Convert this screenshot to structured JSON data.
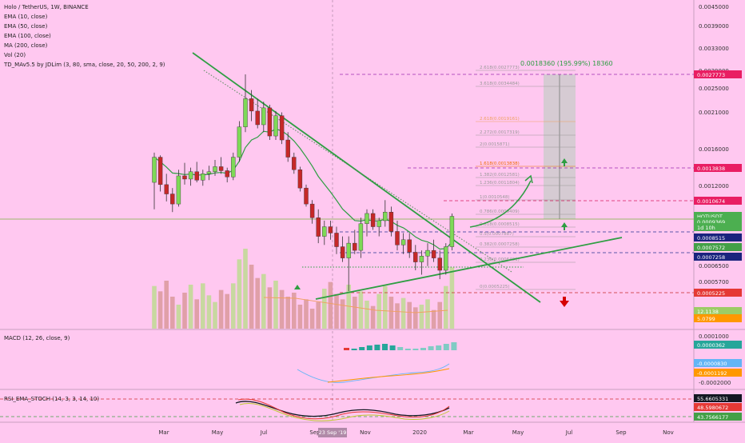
{
  "chart_data": {
    "type": "candlestick",
    "title": "Holo / TetherUS, 1W, BINANCE",
    "price_axis": {
      "ylim": [
        0.0004,
        0.0046
      ],
      "ticks": [
        "0.0045000",
        "0.0039000",
        "0.0033000",
        "0.0029000",
        "0.0025000",
        "0.0021000",
        "0.0016000",
        "0.0012000",
        "0.0006500",
        "0.0005700"
      ]
    },
    "time_axis": {
      "ticks": [
        "Mar",
        "May",
        "Jul",
        "Sep",
        "Nov",
        "2020",
        "Mar",
        "May",
        "Jul",
        "Sep",
        "Nov"
      ],
      "cursor_label": "23 Sep '19"
    },
    "indicators": [
      "EMA (10, close)",
      "EMA (50, close)",
      "EMA (100, close)",
      "MA (200, close)",
      "Vol (20)",
      "TD_MAv5.5 by JDLim (3, 80, sma, close, 20, 50, 200, 2, 9)"
    ],
    "measure_label": "0.0018360 (195.99%) 18360",
    "fib_levels": [
      "2.618(0.0027773)",
      "3.618(0.0034484)",
      "2.618(0.0019161)",
      "2.272(0.0017319)",
      "2(0.0015871)",
      "1.618(0.0013838)",
      "1.382(0.0012581)",
      "1.236(0.0011804)",
      "1(0.0010548)",
      "0.786(0.0009409)",
      "0.618(0.0008515)",
      "0.5(0.0007887)",
      "0.382(0.0007258)",
      "0.236(0.0006481)",
      "0(0.0005225)"
    ],
    "price_tags": [
      {
        "label": "0.0027773",
        "bg": "#e91e63"
      },
      {
        "label": "0.0013838",
        "bg": "#e91e63"
      },
      {
        "label": "0.0010674",
        "bg": "#e91e63"
      },
      {
        "label": "HOTUSDT",
        "bg": "#4caf50"
      },
      {
        "label": "0.0009369",
        "bg": "#4caf50"
      },
      {
        "label": "1d 10h",
        "bg": "#4caf50"
      },
      {
        "label": "0.0008515",
        "bg": "#1a237e"
      },
      {
        "label": "0.0007572",
        "bg": "#43a047"
      },
      {
        "label": "0.0007258",
        "bg": "#1a237e"
      },
      {
        "label": "0.0005225",
        "bg": "#e53935"
      },
      {
        "label": "12.1138",
        "bg": "#9ccc65"
      },
      {
        "label": "5.0799",
        "bg": "#ff9800"
      }
    ],
    "candles": [
      {
        "o": 0.0012,
        "h": 0.0015,
        "l": 0.00098,
        "c": 0.00145
      },
      {
        "o": 0.00145,
        "h": 0.00147,
        "l": 0.00112,
        "c": 0.00118
      },
      {
        "o": 0.00118,
        "h": 0.00128,
        "l": 0.00104,
        "c": 0.0011
      },
      {
        "o": 0.0011,
        "h": 0.00115,
        "l": 0.00096,
        "c": 0.00102
      },
      {
        "o": 0.00102,
        "h": 0.00132,
        "l": 0.001,
        "c": 0.00126
      },
      {
        "o": 0.00126,
        "h": 0.00139,
        "l": 0.00118,
        "c": 0.00123
      },
      {
        "o": 0.00123,
        "h": 0.00134,
        "l": 0.00117,
        "c": 0.0013
      },
      {
        "o": 0.0013,
        "h": 0.0014,
        "l": 0.0012,
        "c": 0.00122
      },
      {
        "o": 0.00122,
        "h": 0.00132,
        "l": 0.00117,
        "c": 0.00128
      },
      {
        "o": 0.00128,
        "h": 0.00136,
        "l": 0.00122,
        "c": 0.0013
      },
      {
        "o": 0.0013,
        "h": 0.00142,
        "l": 0.00126,
        "c": 0.00135
      },
      {
        "o": 0.00135,
        "h": 0.00145,
        "l": 0.00128,
        "c": 0.00131
      },
      {
        "o": 0.00131,
        "h": 0.00134,
        "l": 0.0012,
        "c": 0.00125
      },
      {
        "o": 0.00125,
        "h": 0.0015,
        "l": 0.00122,
        "c": 0.00145
      },
      {
        "o": 0.00145,
        "h": 0.0019,
        "l": 0.0014,
        "c": 0.00182
      },
      {
        "o": 0.00182,
        "h": 0.0027,
        "l": 0.00175,
        "c": 0.00225
      },
      {
        "o": 0.00225,
        "h": 0.0024,
        "l": 0.0019,
        "c": 0.00205
      },
      {
        "o": 0.00205,
        "h": 0.00225,
        "l": 0.0018,
        "c": 0.00185
      },
      {
        "o": 0.00185,
        "h": 0.0022,
        "l": 0.00175,
        "c": 0.0021
      },
      {
        "o": 0.0021,
        "h": 0.00215,
        "l": 0.00165,
        "c": 0.0017
      },
      {
        "o": 0.0017,
        "h": 0.00205,
        "l": 0.00165,
        "c": 0.00198
      },
      {
        "o": 0.00198,
        "h": 0.00203,
        "l": 0.0016,
        "c": 0.00165
      },
      {
        "o": 0.00165,
        "h": 0.00175,
        "l": 0.0014,
        "c": 0.00145
      },
      {
        "o": 0.00145,
        "h": 0.0015,
        "l": 0.00128,
        "c": 0.00132
      },
      {
        "o": 0.00132,
        "h": 0.00135,
        "l": 0.00112,
        "c": 0.00115
      },
      {
        "o": 0.00115,
        "h": 0.00118,
        "l": 0.001,
        "c": 0.00102
      },
      {
        "o": 0.00102,
        "h": 0.00105,
        "l": 0.00088,
        "c": 0.00092
      },
      {
        "o": 0.00092,
        "h": 0.00098,
        "l": 0.00076,
        "c": 0.0008
      },
      {
        "o": 0.0008,
        "h": 0.0009,
        "l": 0.00075,
        "c": 0.00086
      },
      {
        "o": 0.00086,
        "h": 0.0009,
        "l": 0.00078,
        "c": 0.00082
      },
      {
        "o": 0.00082,
        "h": 0.00086,
        "l": 0.0007,
        "c": 0.00074
      },
      {
        "o": 0.00074,
        "h": 0.0008,
        "l": 0.00066,
        "c": 0.00068
      },
      {
        "o": 0.00068,
        "h": 0.0008,
        "l": 0.00053,
        "c": 0.00076
      },
      {
        "o": 0.00076,
        "h": 0.00084,
        "l": 0.0007,
        "c": 0.00072
      },
      {
        "o": 0.00072,
        "h": 0.00092,
        "l": 0.00068,
        "c": 0.00088
      },
      {
        "o": 0.00088,
        "h": 0.00098,
        "l": 0.0008,
        "c": 0.00095
      },
      {
        "o": 0.00095,
        "h": 0.00098,
        "l": 0.00084,
        "c": 0.00086
      },
      {
        "o": 0.00086,
        "h": 0.00092,
        "l": 0.0008,
        "c": 0.0009
      },
      {
        "o": 0.0009,
        "h": 0.00105,
        "l": 0.00086,
        "c": 0.00096
      },
      {
        "o": 0.00096,
        "h": 0.001,
        "l": 0.0008,
        "c": 0.00083
      },
      {
        "o": 0.00083,
        "h": 0.0009,
        "l": 0.00072,
        "c": 0.00075
      },
      {
        "o": 0.00075,
        "h": 0.00082,
        "l": 0.0007,
        "c": 0.00078
      },
      {
        "o": 0.00078,
        "h": 0.00082,
        "l": 0.00068,
        "c": 0.00071
      },
      {
        "o": 0.00071,
        "h": 0.00075,
        "l": 0.00062,
        "c": 0.00066
      },
      {
        "o": 0.00066,
        "h": 0.00072,
        "l": 0.0006,
        "c": 0.00069
      },
      {
        "o": 0.00069,
        "h": 0.00076,
        "l": 0.00064,
        "c": 0.00072
      },
      {
        "o": 0.00072,
        "h": 0.00078,
        "l": 0.00066,
        "c": 0.00068
      },
      {
        "o": 0.00068,
        "h": 0.00072,
        "l": 0.00058,
        "c": 0.00062
      },
      {
        "o": 0.00062,
        "h": 0.00076,
        "l": 0.0006,
        "c": 0.00074
      },
      {
        "o": 0.00074,
        "h": 0.00095,
        "l": 0.00072,
        "c": 0.00093
      }
    ],
    "volume": [
      32,
      28,
      36,
      24,
      18,
      27,
      33,
      22,
      34,
      25,
      20,
      29,
      26,
      34,
      52,
      60,
      48,
      38,
      41,
      31,
      36,
      29,
      24,
      27,
      18,
      22,
      15,
      20,
      30,
      35,
      26,
      22,
      33,
      24,
      28,
      21,
      17,
      26,
      32,
      24,
      19,
      23,
      20,
      16,
      18,
      22,
      14,
      20,
      32,
      46
    ],
    "subpanes": [
      {
        "name": "MACD (12, 26, close, 9)",
        "ticks": [
          "0.0001000",
          "-0.0002000"
        ],
        "tags": [
          {
            "label": "0.0000362",
            "bg": "#26a69a"
          },
          {
            "label": "-0.0000830",
            "bg": "#64b5f6"
          },
          {
            "label": "-0.0001192",
            "bg": "#ff9800"
          }
        ]
      },
      {
        "name": "RSI_EMA_STOCH (14, 3, 3, 14, 10)",
        "tags": [
          {
            "label": "55.6605331",
            "bg": "#131722"
          },
          {
            "label": "48.5980672",
            "bg": "#e53935"
          },
          {
            "label": "43.7566177",
            "bg": "#43a047"
          }
        ]
      }
    ]
  }
}
